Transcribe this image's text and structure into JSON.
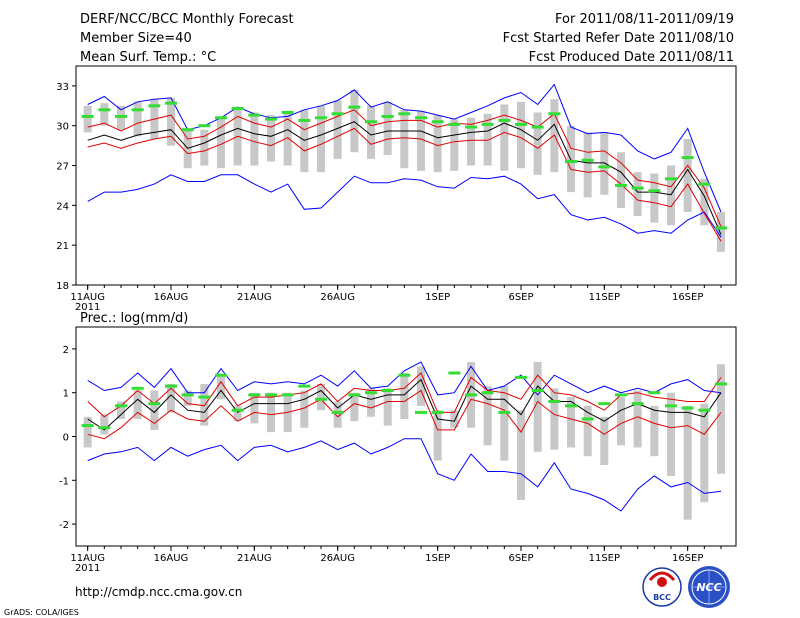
{
  "header": {
    "title": "DERF/NCC/BCC Monthly Forecast",
    "member_size": "Member Size=40",
    "variable": "Mean Surf. Temp.: °C",
    "period": "For 2011/08/11-2011/09/19",
    "fcst_started": "Fcst Started Refer Date 2011/08/10",
    "fcst_produced": "Fcst Produced Date 2011/08/11"
  },
  "footer": {
    "url": "http://cmdp.ncc.cma.gov.cn",
    "grads": "GrADS: COLA/IGES",
    "logo1_text": "BCC",
    "logo2_text": "NCC"
  },
  "colors": {
    "envelope": "#0000ff",
    "spread": "#e00000",
    "mean": "#000000",
    "obs": "#33dd33",
    "bar": "#c8c8c8"
  },
  "chart_data": [
    {
      "type": "line",
      "title": "Mean Surf. Temp.: °C",
      "x": [
        11,
        12,
        13,
        14,
        15,
        16,
        17,
        18,
        19,
        20,
        21,
        22,
        23,
        24,
        25,
        26,
        27,
        28,
        29,
        30,
        31,
        32,
        33,
        34,
        35,
        36,
        37,
        38,
        39,
        40,
        41,
        42,
        43,
        44,
        45,
        46,
        47,
        48,
        49
      ],
      "x_ticks": [
        {
          "x": 11,
          "label": "11AUG",
          "sub": "2011"
        },
        {
          "x": 16,
          "label": "16AUG"
        },
        {
          "x": 21,
          "label": "21AUG"
        },
        {
          "x": 26,
          "label": "26AUG"
        },
        {
          "x": 32,
          "label": "1SEP"
        },
        {
          "x": 37,
          "label": "6SEP"
        },
        {
          "x": 42,
          "label": "11SEP"
        },
        {
          "x": 47,
          "label": "16SEP"
        }
      ],
      "xlim": [
        10.3,
        49.9
      ],
      "ylim": [
        18,
        34.5
      ],
      "y_ticks": [
        18,
        21,
        24,
        27,
        30,
        33
      ],
      "series": [
        {
          "name": "ensemble max",
          "style": "envelope",
          "values": [
            31.6,
            32.2,
            31.2,
            31.8,
            32.0,
            32.1,
            29.7,
            30.0,
            30.6,
            31.4,
            30.9,
            30.6,
            30.7,
            31.2,
            31.5,
            31.9,
            32.7,
            31.4,
            31.8,
            31.2,
            31.1,
            30.8,
            30.5,
            31.0,
            31.5,
            32.1,
            32.5,
            31.6,
            33.1,
            29.9,
            29.4,
            29.5,
            29.3,
            28.1,
            27.5,
            28.0,
            29.8,
            26.5,
            23.5
          ]
        },
        {
          "name": "ensemble min",
          "style": "envelope",
          "values": [
            24.3,
            25.0,
            25.0,
            25.2,
            25.6,
            26.3,
            25.8,
            25.8,
            26.3,
            26.3,
            25.6,
            25.0,
            25.6,
            23.7,
            23.8,
            25.0,
            26.2,
            25.7,
            25.7,
            26.0,
            25.9,
            25.4,
            25.3,
            26.1,
            26.0,
            26.2,
            25.6,
            24.5,
            24.8,
            23.3,
            22.9,
            23.1,
            22.6,
            21.9,
            22.1,
            21.9,
            22.9,
            23.5,
            21.6
          ]
        },
        {
          "name": "upper spread",
          "style": "spread",
          "values": [
            29.9,
            30.2,
            29.6,
            30.2,
            30.5,
            30.8,
            29.0,
            29.2,
            29.9,
            30.7,
            30.2,
            29.9,
            30.5,
            29.7,
            30.2,
            30.7,
            31.2,
            30.0,
            30.3,
            30.4,
            30.4,
            29.9,
            30.2,
            30.1,
            30.4,
            30.8,
            30.4,
            29.9,
            30.9,
            28.3,
            28.0,
            28.1,
            27.2,
            25.9,
            25.7,
            25.4,
            27.0,
            25.3,
            22.4
          ]
        },
        {
          "name": "lower spread",
          "style": "spread",
          "values": [
            28.4,
            28.7,
            28.3,
            28.7,
            29.0,
            29.2,
            27.9,
            28.1,
            28.6,
            29.2,
            28.8,
            28.5,
            29.1,
            28.1,
            28.6,
            29.2,
            29.8,
            28.6,
            29.0,
            29.1,
            29.0,
            28.5,
            28.8,
            28.9,
            28.9,
            29.5,
            29.1,
            28.3,
            29.3,
            26.7,
            26.5,
            26.6,
            25.6,
            24.4,
            24.2,
            23.9,
            25.6,
            23.4,
            21.3
          ]
        },
        {
          "name": "ensemble mean",
          "style": "mean",
          "values": [
            28.9,
            29.3,
            28.9,
            29.3,
            29.5,
            29.7,
            28.3,
            28.7,
            29.3,
            29.8,
            29.4,
            29.2,
            29.7,
            28.9,
            29.3,
            29.8,
            30.3,
            29.3,
            29.6,
            29.6,
            29.6,
            29.1,
            29.3,
            29.5,
            29.6,
            30.2,
            29.7,
            28.9,
            30.1,
            27.4,
            27.2,
            27.2,
            26.5,
            25.0,
            25.0,
            24.8,
            26.7,
            24.7,
            21.8
          ]
        }
      ],
      "observed": [
        30.7,
        31.2,
        30.7,
        31.2,
        31.5,
        31.7,
        29.7,
        30.0,
        30.6,
        31.3,
        30.8,
        30.5,
        31.0,
        30.4,
        30.6,
        30.9,
        31.4,
        30.3,
        30.7,
        30.9,
        30.6,
        30.3,
        30.1,
        29.9,
        30.1,
        30.4,
        30.1,
        29.9,
        30.9,
        27.3,
        27.4,
        26.9,
        25.5,
        25.3,
        25.1,
        26.0,
        27.6,
        25.6,
        22.3
      ],
      "bars": [
        [
          29.5,
          31.5
        ],
        [
          30.0,
          31.7
        ],
        [
          29.7,
          31.5
        ],
        [
          29.2,
          31.8
        ],
        [
          29.0,
          32.0
        ],
        [
          28.5,
          32.1
        ],
        [
          26.8,
          29.6
        ],
        [
          27.0,
          29.7
        ],
        [
          26.8,
          30.5
        ],
        [
          27.0,
          31.4
        ],
        [
          27.0,
          31.0
        ],
        [
          27.3,
          30.8
        ],
        [
          27.0,
          30.9
        ],
        [
          26.5,
          31.2
        ],
        [
          26.5,
          31.5
        ],
        [
          27.5,
          31.9
        ],
        [
          28.0,
          32.7
        ],
        [
          27.5,
          31.5
        ],
        [
          27.8,
          31.8
        ],
        [
          26.8,
          31.2
        ],
        [
          26.6,
          31.1
        ],
        [
          26.5,
          30.8
        ],
        [
          26.6,
          30.5
        ],
        [
          27.0,
          30.6
        ],
        [
          27.0,
          30.9
        ],
        [
          26.6,
          31.6
        ],
        [
          26.8,
          31.8
        ],
        [
          26.3,
          31.0
        ],
        [
          26.5,
          32.0
        ],
        [
          25.0,
          30.0
        ],
        [
          24.6,
          29.5
        ],
        [
          24.8,
          29.5
        ],
        [
          23.8,
          28.0
        ],
        [
          23.2,
          26.5
        ],
        [
          22.7,
          26.4
        ],
        [
          22.5,
          27.0
        ],
        [
          23.5,
          29.0
        ],
        [
          22.5,
          26.0
        ],
        [
          20.5,
          23.5
        ]
      ]
    },
    {
      "type": "line",
      "title": "Prec.: log(mm/d)",
      "x": [
        11,
        12,
        13,
        14,
        15,
        16,
        17,
        18,
        19,
        20,
        21,
        22,
        23,
        24,
        25,
        26,
        27,
        28,
        29,
        30,
        31,
        32,
        33,
        34,
        35,
        36,
        37,
        38,
        39,
        40,
        41,
        42,
        43,
        44,
        45,
        46,
        47,
        48,
        49
      ],
      "x_ticks": [
        {
          "x": 11,
          "label": "11AUG",
          "sub": "2011"
        },
        {
          "x": 16,
          "label": "16AUG"
        },
        {
          "x": 21,
          "label": "21AUG"
        },
        {
          "x": 26,
          "label": "26AUG"
        },
        {
          "x": 32,
          "label": "1SEP"
        },
        {
          "x": 37,
          "label": "6SEP"
        },
        {
          "x": 42,
          "label": "11SEP"
        },
        {
          "x": 47,
          "label": "16SEP"
        }
      ],
      "xlim": [
        10.3,
        49.9
      ],
      "ylim": [
        -2.5,
        2.5
      ],
      "y_ticks": [
        -2,
        -1,
        0,
        1,
        2
      ],
      "series": [
        {
          "name": "ensemble max",
          "style": "envelope",
          "values": [
            1.28,
            1.05,
            1.12,
            1.45,
            1.12,
            1.55,
            1.0,
            1.0,
            1.55,
            1.05,
            1.25,
            1.2,
            1.25,
            1.2,
            1.4,
            1.15,
            1.5,
            1.1,
            1.15,
            1.5,
            1.7,
            0.95,
            1.0,
            1.6,
            1.05,
            1.15,
            1.4,
            0.95,
            1.4,
            1.2,
            1.0,
            1.15,
            1.0,
            1.1,
            1.0,
            1.2,
            1.3,
            1.05,
            1.0
          ]
        },
        {
          "name": "ensemble min",
          "style": "envelope",
          "values": [
            -0.55,
            -0.4,
            -0.35,
            -0.25,
            -0.55,
            -0.25,
            -0.45,
            -0.3,
            -0.2,
            -0.55,
            -0.25,
            -0.2,
            -0.35,
            -0.25,
            -0.1,
            -0.3,
            -0.15,
            -0.4,
            -0.25,
            -0.05,
            -0.05,
            -0.85,
            -1.0,
            -0.4,
            -0.8,
            -0.8,
            -0.85,
            -1.15,
            -0.6,
            -1.2,
            -1.3,
            -1.45,
            -1.7,
            -1.2,
            -0.9,
            -1.15,
            -1.05,
            -1.3,
            -1.25
          ]
        },
        {
          "name": "upper spread",
          "style": "spread",
          "values": [
            0.8,
            0.45,
            0.7,
            1.05,
            0.75,
            1.1,
            0.75,
            0.7,
            1.25,
            0.7,
            0.9,
            0.9,
            0.95,
            1.0,
            1.2,
            0.8,
            1.1,
            1.05,
            1.05,
            1.1,
            1.45,
            0.55,
            0.55,
            1.35,
            1.05,
            1.0,
            0.85,
            1.4,
            1.0,
            0.95,
            0.8,
            0.6,
            0.95,
            1.0,
            0.9,
            0.85,
            0.8,
            0.8,
            1.35
          ]
        },
        {
          "name": "lower spread",
          "style": "spread",
          "values": [
            0.05,
            -0.05,
            0.2,
            0.55,
            0.3,
            0.6,
            0.4,
            0.35,
            0.7,
            0.35,
            0.55,
            0.5,
            0.55,
            0.65,
            0.85,
            0.45,
            0.75,
            0.65,
            0.8,
            0.8,
            1.05,
            0.15,
            0.15,
            0.85,
            0.75,
            0.6,
            0.1,
            0.8,
            0.5,
            0.4,
            0.3,
            0.05,
            0.3,
            0.45,
            0.3,
            0.2,
            0.25,
            0.05,
            0.55
          ]
        },
        {
          "name": "ensemble mean",
          "style": "mean",
          "values": [
            0.4,
            0.15,
            0.5,
            0.85,
            0.55,
            0.95,
            0.6,
            0.55,
            1.05,
            0.55,
            0.75,
            0.75,
            0.75,
            0.85,
            1.05,
            0.65,
            0.95,
            0.85,
            0.95,
            0.95,
            1.3,
            0.4,
            0.35,
            1.15,
            0.85,
            0.85,
            0.5,
            1.15,
            0.8,
            0.8,
            0.55,
            0.35,
            0.6,
            0.75,
            0.6,
            0.55,
            0.55,
            0.45,
            1.0
          ]
        }
      ],
      "observed": [
        0.25,
        0.2,
        0.7,
        1.1,
        0.75,
        1.15,
        0.95,
        0.9,
        1.4,
        0.6,
        0.95,
        0.95,
        0.95,
        1.15,
        0.85,
        0.55,
        0.95,
        1.0,
        1.05,
        1.4,
        0.55,
        0.55,
        1.45,
        0.95,
        1.0,
        0.55,
        1.35,
        1.05,
        0.8,
        0.7,
        0.4,
        0.75,
        0.95,
        0.75,
        1.0,
        0.7,
        0.65,
        0.6,
        1.2
      ],
      "bars": [
        [
          -0.25,
          0.45
        ],
        [
          0.05,
          0.5
        ],
        [
          0.4,
          0.8
        ],
        [
          0.4,
          1.05
        ],
        [
          0.15,
          1.05
        ],
        [
          0.55,
          1.2
        ],
        [
          0.7,
          1.05
        ],
        [
          0.25,
          1.2
        ],
        [
          0.85,
          1.4
        ],
        [
          0.35,
          0.7
        ],
        [
          0.3,
          1.0
        ],
        [
          0.1,
          1.0
        ],
        [
          0.1,
          1.0
        ],
        [
          0.2,
          1.05
        ],
        [
          0.6,
          1.2
        ],
        [
          0.2,
          0.8
        ],
        [
          0.35,
          1.0
        ],
        [
          0.45,
          1.1
        ],
        [
          0.25,
          1.1
        ],
        [
          0.4,
          1.45
        ],
        [
          0.7,
          1.6
        ],
        [
          -0.55,
          0.6
        ],
        [
          0.2,
          0.6
        ],
        [
          0.2,
          1.7
        ],
        [
          -0.2,
          1.15
        ],
        [
          -0.55,
          1.15
        ],
        [
          -1.45,
          0.6
        ],
        [
          -0.35,
          1.7
        ],
        [
          -0.3,
          1.1
        ],
        [
          -0.25,
          0.9
        ],
        [
          -0.45,
          0.7
        ],
        [
          -0.65,
          0.45
        ],
        [
          -0.2,
          0.9
        ],
        [
          -0.25,
          1.05
        ],
        [
          -0.45,
          0.7
        ],
        [
          -0.9,
          1.0
        ],
        [
          -1.9,
          0.7
        ],
        [
          -1.5,
          0.75
        ],
        [
          -0.85,
          1.65
        ]
      ]
    }
  ]
}
